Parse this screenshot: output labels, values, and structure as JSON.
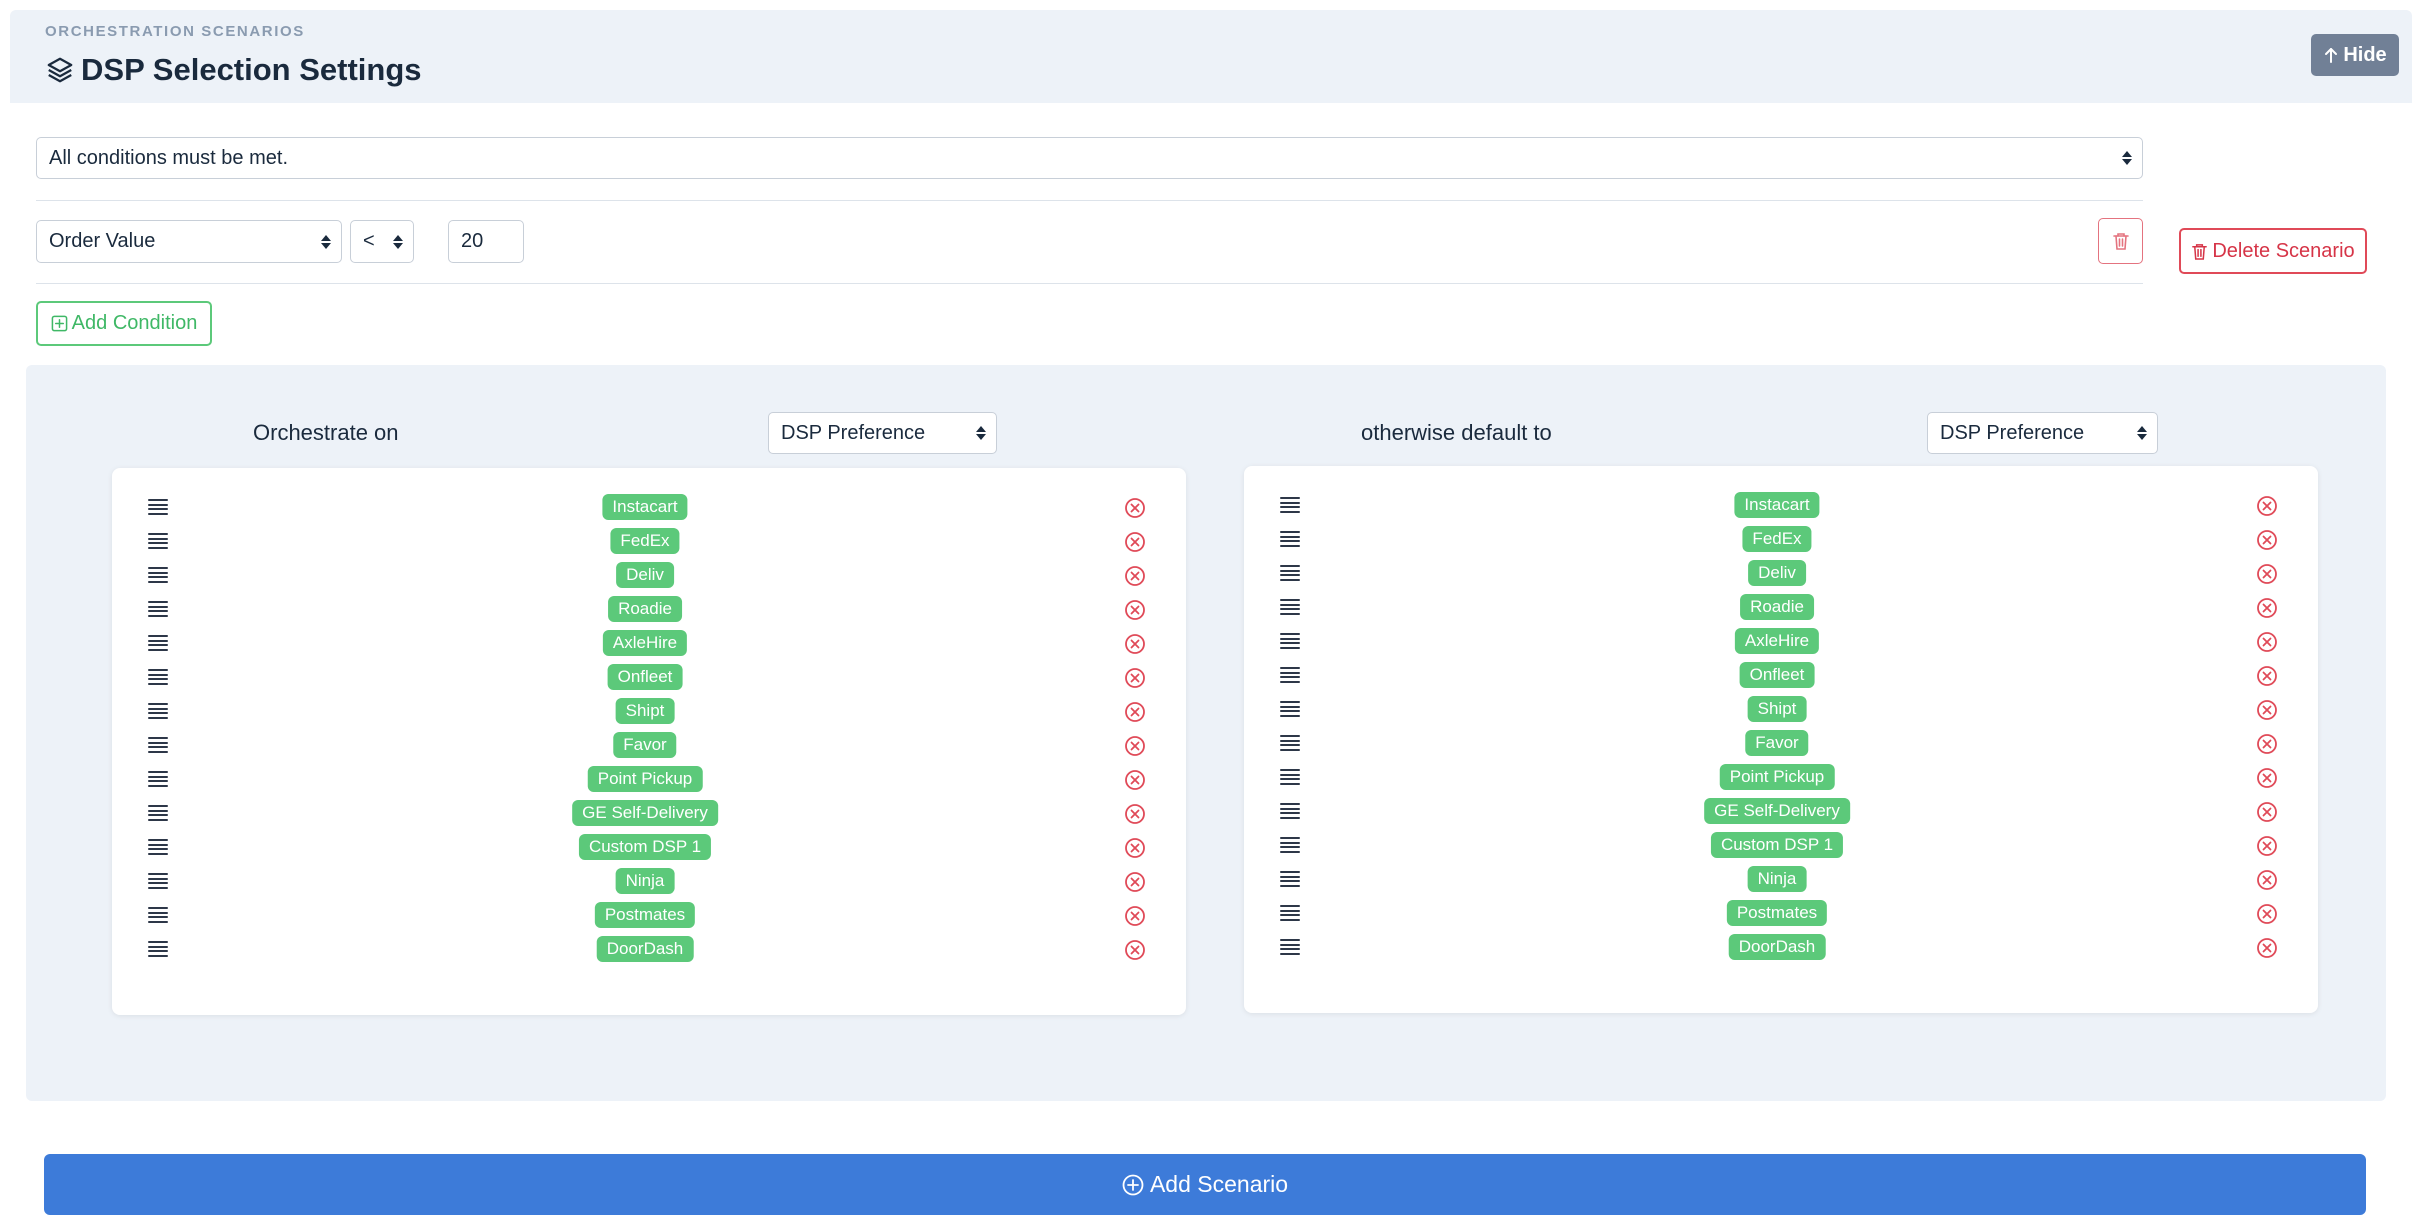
{
  "header": {
    "overline": "ORCHESTRATION SCENARIOS",
    "title": "DSP Selection Settings",
    "hide_label": "Hide",
    "icons": {
      "title": "layers-icon",
      "hide": "arrow-up-icon"
    }
  },
  "conditions": {
    "match_mode": "All conditions must be met.",
    "field": "Order Value",
    "operator": "<",
    "value": "20",
    "add_condition_label": "Add Condition",
    "delete_scenario_label": "Delete Scenario"
  },
  "orchestration": {
    "primary_label": "Orchestrate on",
    "primary_strategy": "DSP Preference",
    "fallback_label": "otherwise default to",
    "fallback_strategy": "DSP Preference",
    "primary_dsps": [
      "Instacart",
      "FedEx",
      "Deliv",
      "Roadie",
      "AxleHire",
      "Onfleet",
      "Shipt",
      "Favor",
      "Point Pickup",
      "GE Self-Delivery",
      "Custom DSP 1",
      "Ninja",
      "Postmates",
      "DoorDash"
    ],
    "fallback_dsps": [
      "Instacart",
      "FedEx",
      "Deliv",
      "Roadie",
      "AxleHire",
      "Onfleet",
      "Shipt",
      "Favor",
      "Point Pickup",
      "GE Self-Delivery",
      "Custom DSP 1",
      "Ninja",
      "Postmates",
      "DoorDash"
    ]
  },
  "footer": {
    "add_scenario_label": "Add Scenario"
  },
  "colors": {
    "pill": "#5cc97a",
    "danger": "#e04a58",
    "primary": "#3d7bd9",
    "hide_button": "#718096",
    "panel_bg": "#edf2f8"
  }
}
